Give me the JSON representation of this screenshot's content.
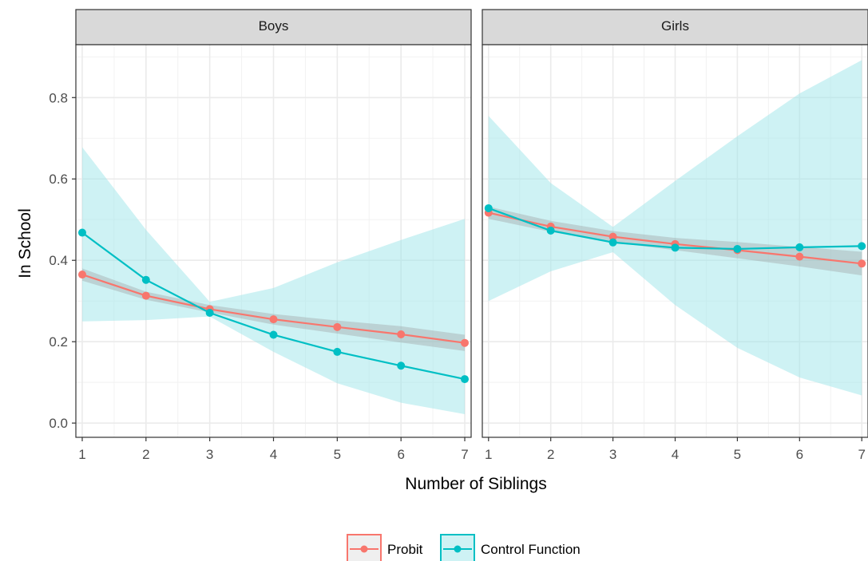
{
  "chart_data": {
    "type": "line",
    "xlabel": "Number of Siblings",
    "ylabel": "In School",
    "x": [
      1,
      2,
      3,
      4,
      5,
      6,
      7
    ],
    "xlim": [
      0.9,
      7.1
    ],
    "ylim": [
      -0.035,
      0.93
    ],
    "yticks": [
      0.0,
      0.2,
      0.4,
      0.6,
      0.8
    ],
    "ytick_labels": [
      "0.0",
      "0.2",
      "0.4",
      "0.6",
      "0.8"
    ],
    "xtick_labels": [
      "1",
      "2",
      "3",
      "4",
      "5",
      "6",
      "7"
    ],
    "grid": true,
    "legend": {
      "position": "bottom",
      "entries": [
        "Probit",
        "Control Function"
      ]
    },
    "colors": {
      "Probit": "#F8766D",
      "Control Function": "#00BFC4",
      "probit_band": "#999999",
      "cf_band": "#9EE6EA"
    },
    "panels": [
      {
        "label": "Boys",
        "series": [
          {
            "name": "Probit",
            "values": [
              0.365,
              0.313,
              0.28,
              0.255,
              0.236,
              0.218,
              0.197
            ],
            "lower": [
              0.35,
              0.303,
              0.272,
              0.242,
              0.22,
              0.198,
              0.177
            ],
            "upper": [
              0.38,
              0.323,
              0.29,
              0.268,
              0.252,
              0.238,
              0.217
            ]
          },
          {
            "name": "Control Function",
            "values": [
              0.468,
              0.352,
              0.271,
              0.217,
              0.175,
              0.141,
              0.108
            ],
            "lower": [
              0.25,
              0.253,
              0.262,
              0.175,
              0.098,
              0.05,
              0.022
            ],
            "upper": [
              0.678,
              0.475,
              0.298,
              0.332,
              0.395,
              0.45,
              0.502
            ]
          }
        ]
      },
      {
        "label": "Girls",
        "series": [
          {
            "name": "Probit",
            "values": [
              0.517,
              0.483,
              0.458,
              0.44,
              0.425,
              0.409,
              0.392
            ],
            "lower": [
              0.502,
              0.47,
              0.444,
              0.425,
              0.405,
              0.385,
              0.363
            ],
            "upper": [
              0.532,
              0.497,
              0.472,
              0.455,
              0.445,
              0.433,
              0.421
            ]
          },
          {
            "name": "Control Function",
            "values": [
              0.528,
              0.473,
              0.444,
              0.431,
              0.428,
              0.432,
              0.435
            ],
            "lower": [
              0.3,
              0.373,
              0.42,
              0.29,
              0.185,
              0.112,
              0.068
            ],
            "upper": [
              0.755,
              0.59,
              0.482,
              0.595,
              0.705,
              0.81,
              0.892
            ]
          }
        ]
      }
    ]
  }
}
